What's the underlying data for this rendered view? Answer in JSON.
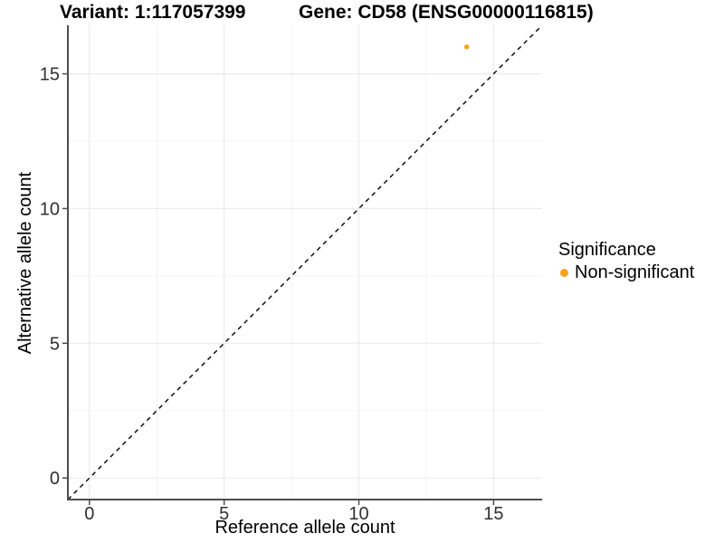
{
  "chart_data": {
    "type": "scatter",
    "title_left": "Variant: 1:117057399",
    "title_right": "Gene: CD58 (ENSG00000116815)",
    "xlabel": "Reference allele count",
    "ylabel": "Alternative allele count",
    "xlim": [
      -0.8,
      16.8
    ],
    "ylim": [
      -0.8,
      16.8
    ],
    "x_ticks": [
      0,
      5,
      10,
      15
    ],
    "y_ticks": [
      0,
      5,
      10,
      15
    ],
    "x_minor_gridlines": [
      2.5,
      7.5,
      12.5
    ],
    "y_minor_gridlines": [
      2.5,
      7.5,
      12.5
    ],
    "grid": "major-and-minor",
    "points": [
      {
        "x": 14,
        "y": 16,
        "series": "Non-significant",
        "color": "#F9A11B"
      }
    ],
    "identity_line": {
      "slope": 1,
      "intercept": 0,
      "linetype": "dashed",
      "color": "#000000"
    },
    "legend": {
      "position": "right",
      "title": "Significance",
      "entries": [
        {
          "label": "Non-significant",
          "color": "#F9A11B"
        }
      ]
    },
    "colors": {
      "point": "#F9A11B",
      "axis_line": "#4D4D4D",
      "tick_text": "#303030",
      "grid_major": "#EBEBEB",
      "grid_minor": "#F3F3F3",
      "background": "#FFFFFF"
    }
  }
}
